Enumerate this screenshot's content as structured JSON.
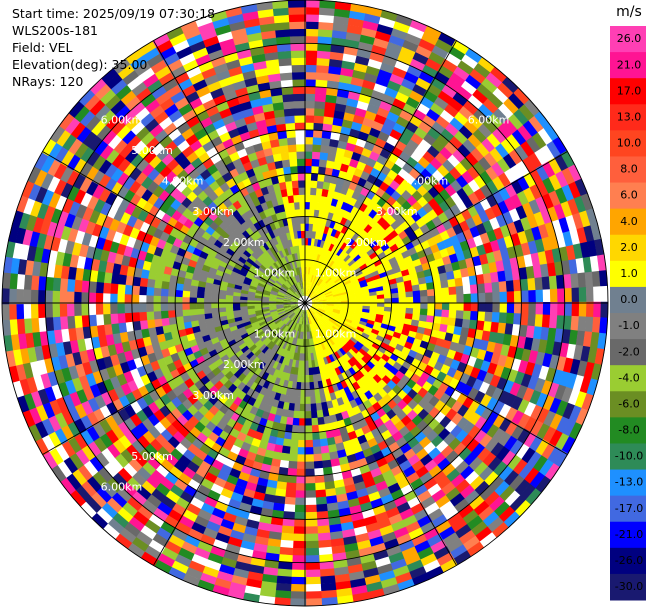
{
  "header": {
    "start_time": "Start time: 2025/09/19 07:30:18",
    "instrument": "WLS200s-181",
    "field": "Field: VEL",
    "elevation": "Elevation(deg): 35.00",
    "nrays": "NRays: 120"
  },
  "chart_data": {
    "type": "heatmap",
    "projection": "polar-ppi",
    "title": "",
    "field": "VEL",
    "elevation_deg": 35.0,
    "n_rays": 120,
    "range_max_km": 7,
    "range_rings_km": [
      1,
      2,
      3,
      4,
      5,
      6,
      7
    ],
    "ring_labels": [
      {
        "text": "1.00km"
      },
      {
        "text": "1.00km"
      },
      {
        "text": "1.00km"
      },
      {
        "text": "1.00km"
      },
      {
        "text": "2.00km"
      },
      {
        "text": "2.00km"
      },
      {
        "text": "2.00km"
      },
      {
        "text": "3.00km"
      },
      {
        "text": "3.00km"
      },
      {
        "text": "3.00km"
      },
      {
        "text": "4.00km"
      },
      {
        "text": "4.00km"
      },
      {
        "text": "5.00km"
      },
      {
        "text": "5.00km"
      },
      {
        "text": "6.00km"
      },
      {
        "text": "6.00km"
      },
      {
        "text": "6.00km"
      }
    ],
    "colorbar": {
      "unit": "m/s",
      "tick_labels": [
        "26.0",
        "21.0",
        "17.0",
        "13.0",
        "10.0",
        "8.0",
        "6.0",
        "4.0",
        "2.0",
        "1.0",
        "0.0",
        "-1.0",
        "-2.0",
        "-4.0",
        "-6.0",
        "-8.0",
        "-10.0",
        "-13.0",
        "-17.0",
        "-21.0",
        "-26.0",
        "-30.0"
      ],
      "colors": [
        "#ff3fb4",
        "#ff1493",
        "#ff0000",
        "#ff2a1a",
        "#ff4520",
        "#ff5f3c",
        "#ff7f50",
        "#ffa500",
        "#ffd700",
        "#ffff00",
        "#708090",
        "#808080",
        "#696969",
        "#9acd32",
        "#6b8e23",
        "#228b22",
        "#2e8b57",
        "#1e90ff",
        "#4169e1",
        "#0000ff",
        "#000080",
        "#191970"
      ]
    }
  }
}
